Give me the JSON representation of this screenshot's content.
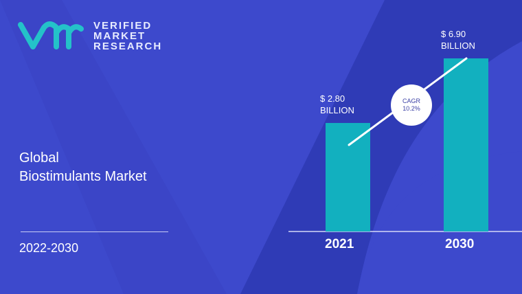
{
  "brand": {
    "logo_mark": "vmr",
    "line1": "VERIFIED",
    "line2": "MARKET",
    "line3": "RESEARCH"
  },
  "title": {
    "line1": "Global",
    "line2": "Biostimulants Market"
  },
  "period": "2022-2030",
  "colors": {
    "background": "#3d49cc",
    "bar": "#12b0bf",
    "accent_logo": "#24c2c9"
  },
  "chart_data": {
    "type": "bar",
    "categories": [
      "2021",
      "2030"
    ],
    "values": [
      2.8,
      6.9
    ],
    "data_labels": [
      [
        "$ 2.80",
        "BILLION"
      ],
      [
        "$ 6.90",
        "BILLION"
      ]
    ],
    "unit": "USD Billion",
    "annotation": {
      "line1": "CAGR",
      "line2": "10.2%"
    },
    "grid": false
  }
}
